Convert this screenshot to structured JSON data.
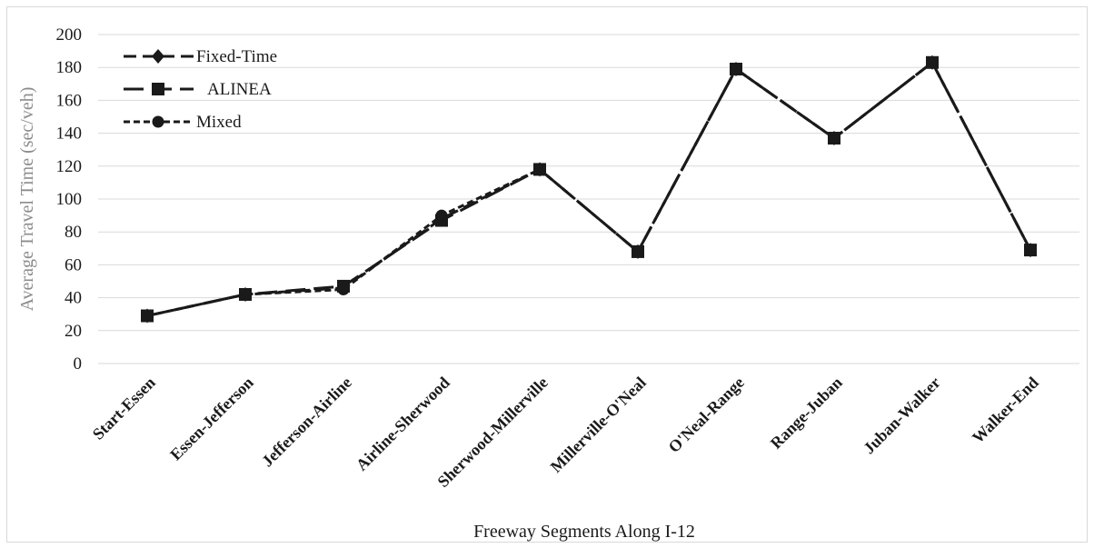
{
  "chart_data": {
    "type": "line",
    "title": "",
    "xlabel": "Freeway Segments Along I-12",
    "ylabel": "Average Travel Time (sec/veh)",
    "ylim": [
      0,
      200
    ],
    "yticks": [
      0,
      20,
      40,
      60,
      80,
      100,
      120,
      140,
      160,
      180,
      200
    ],
    "grid": true,
    "legend_position": "top-left",
    "categories": [
      "Start-Essen",
      "Essen-Jefferson",
      "Jefferson-Airline",
      "Airline-Sherwood",
      "Sherwood-Millerville",
      "Millerville-O'Neal",
      "O'Neal-Range",
      "Range-Juban",
      "Juban-Walker",
      "Walker-End"
    ],
    "series": [
      {
        "name": "Fixed-Time",
        "marker": "diamond",
        "dash": "medium",
        "color": "#1a1a1a",
        "values": [
          29,
          42,
          46,
          88,
          118,
          68,
          179,
          137,
          183,
          69
        ]
      },
      {
        "name": "ALINEA",
        "marker": "square",
        "dash": "long",
        "color": "#1a1a1a",
        "values": [
          29,
          42,
          47,
          87,
          118,
          68,
          179,
          137,
          183,
          69
        ]
      },
      {
        "name": "Mixed",
        "marker": "circle",
        "dash": "short",
        "color": "#1a1a1a",
        "values": [
          29,
          42,
          45,
          90,
          118,
          68,
          179,
          137,
          183,
          69
        ]
      }
    ]
  }
}
